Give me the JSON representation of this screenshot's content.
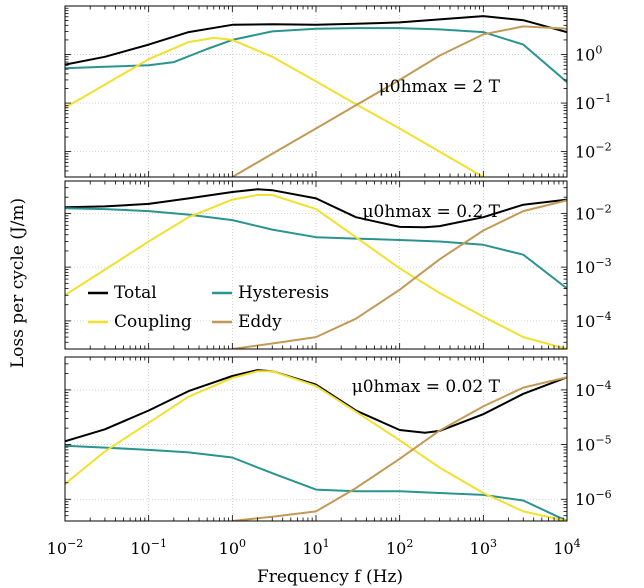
{
  "figure": {
    "ylabel": "Loss per cycle (J/m)",
    "xlabel": "Frequency f (Hz)"
  },
  "colors": {
    "Total": "#000000",
    "Hysteresis": "#2a9490",
    "Coupling": "#f2e02d",
    "Eddy": "#c29a57"
  },
  "chart_data": [
    {
      "type": "line",
      "annotation": "μ0hmax = 2 T",
      "xlim": [
        0.01,
        10000
      ],
      "xscale": "log",
      "ylim": [
        0.003,
        10
      ],
      "yscale": "log",
      "grid": true,
      "yticks": [
        {
          "v": 1,
          "label": "10^0"
        },
        {
          "v": 0.1,
          "label": "10^-1"
        },
        {
          "v": 0.01,
          "label": "10^-2"
        }
      ],
      "series": [
        {
          "name": "Total",
          "x": [
            0.01,
            0.03,
            0.1,
            0.3,
            1,
            3,
            10,
            30,
            100,
            300,
            1000,
            3000,
            10000
          ],
          "y": [
            0.62,
            0.9,
            1.6,
            2.9,
            4.1,
            4.2,
            4.1,
            4.3,
            4.6,
            5.3,
            6.2,
            5.1,
            2.9
          ]
        },
        {
          "name": "Hysteresis",
          "x": [
            0.01,
            0.03,
            0.1,
            0.2,
            0.5,
            1,
            3,
            10,
            30,
            100,
            300,
            1000,
            3000,
            10000
          ],
          "y": [
            0.52,
            0.56,
            0.6,
            0.7,
            1.3,
            2.0,
            3.0,
            3.4,
            3.5,
            3.5,
            3.3,
            2.9,
            1.6,
            0.27
          ]
        },
        {
          "name": "Coupling",
          "x": [
            0.01,
            0.03,
            0.1,
            0.3,
            0.6,
            1,
            3,
            10,
            30,
            100,
            300,
            1000
          ],
          "y": [
            0.08,
            0.24,
            0.8,
            1.8,
            2.2,
            2.0,
            0.9,
            0.28,
            0.095,
            0.03,
            0.01,
            0.003
          ]
        },
        {
          "name": "Eddy",
          "x": [
            1,
            3,
            10,
            30,
            100,
            300,
            1000,
            3000,
            10000
          ],
          "y": [
            0.003,
            0.009,
            0.03,
            0.09,
            0.3,
            0.95,
            2.6,
            3.8,
            3.4
          ]
        }
      ]
    },
    {
      "type": "line",
      "annotation": "μ0hmax = 0.2 T",
      "xlim": [
        0.01,
        10000
      ],
      "xscale": "log",
      "ylim": [
        3e-05,
        0.04
      ],
      "yscale": "log",
      "grid": true,
      "yticks": [
        {
          "v": 0.01,
          "label": "10^-2"
        },
        {
          "v": 0.001,
          "label": "10^-3"
        },
        {
          "v": 0.0001,
          "label": "10^-4"
        }
      ],
      "series": [
        {
          "name": "Total",
          "x": [
            0.01,
            0.03,
            0.1,
            0.3,
            1,
            2,
            3,
            10,
            30,
            100,
            200,
            300,
            1000,
            3000,
            10000
          ],
          "y": [
            0.013,
            0.0135,
            0.015,
            0.019,
            0.025,
            0.028,
            0.027,
            0.019,
            0.0085,
            0.0056,
            0.0055,
            0.0058,
            0.0085,
            0.0145,
            0.018
          ]
        },
        {
          "name": "Hysteresis",
          "x": [
            0.01,
            0.03,
            0.1,
            0.3,
            1,
            3,
            10,
            30,
            100,
            300,
            1000,
            3000,
            10000
          ],
          "y": [
            0.0125,
            0.012,
            0.011,
            0.0095,
            0.0075,
            0.005,
            0.0036,
            0.0034,
            0.0032,
            0.003,
            0.0026,
            0.0017,
            0.0004
          ]
        },
        {
          "name": "Coupling",
          "x": [
            0.01,
            0.03,
            0.1,
            0.3,
            1,
            2,
            3,
            10,
            30,
            100,
            300,
            1000,
            3000,
            10000
          ],
          "y": [
            0.0003,
            0.0009,
            0.003,
            0.0085,
            0.018,
            0.022,
            0.022,
            0.012,
            0.0036,
            0.00095,
            0.00033,
            0.00012,
            5e-05,
            3e-05
          ]
        },
        {
          "name": "Eddy",
          "x": [
            1,
            3,
            10,
            30,
            100,
            300,
            1000,
            3000,
            10000
          ],
          "y": [
            3e-05,
            3.8e-05,
            5e-05,
            0.00011,
            0.00038,
            0.0014,
            0.0048,
            0.011,
            0.0175
          ]
        }
      ]
    },
    {
      "type": "line",
      "annotation": "μ0hmax = 0.02 T",
      "xlim": [
        0.01,
        10000
      ],
      "xscale": "log",
      "ylim": [
        4e-07,
        0.0004
      ],
      "yscale": "log",
      "grid": true,
      "yticks": [
        {
          "v": 0.0001,
          "label": "10^-4"
        },
        {
          "v": 1e-05,
          "label": "10^-5"
        },
        {
          "v": 1e-06,
          "label": "10^-6"
        }
      ],
      "series": [
        {
          "name": "Total",
          "x": [
            0.01,
            0.03,
            0.1,
            0.3,
            1,
            2,
            3,
            10,
            30,
            100,
            200,
            300,
            1000,
            3000,
            10000
          ],
          "y": [
            1.15e-05,
            1.9e-05,
            4.2e-05,
            9.5e-05,
            0.00018,
            0.00023,
            0.00022,
            0.000125,
            4.2e-05,
            1.85e-05,
            1.65e-05,
            1.78e-05,
            3.6e-05,
            8.5e-05,
            0.00017
          ]
        },
        {
          "name": "Hysteresis",
          "x": [
            0.01,
            0.03,
            0.1,
            0.3,
            1,
            3,
            10,
            30,
            100,
            300,
            1000,
            3000,
            10000
          ],
          "y": [
            9.5e-06,
            8.8e-06,
            8e-06,
            7.2e-06,
            5.8e-06,
            3e-06,
            1.5e-06,
            1.4e-06,
            1.4e-06,
            1.3e-06,
            1.2e-06,
            9.5e-07,
            4e-07
          ]
        },
        {
          "name": "Coupling",
          "x": [
            0.01,
            0.03,
            0.1,
            0.3,
            1,
            2,
            3,
            10,
            30,
            100,
            300,
            1000,
            3000,
            10000
          ],
          "y": [
            1.9e-06,
            7.5e-06,
            2.5e-05,
            7.5e-05,
            0.000165,
            0.00022,
            0.00022,
            0.000118,
            4e-05,
            1.2e-05,
            3.8e-06,
            1.3e-06,
            6e-07,
            4e-07
          ]
        },
        {
          "name": "Eddy",
          "x": [
            1,
            3,
            10,
            30,
            100,
            300,
            1000,
            3000,
            10000
          ],
          "y": [
            4e-07,
            4.8e-07,
            6e-07,
            1.6e-06,
            5.5e-06,
            1.8e-05,
            5e-05,
            0.00011,
            0.00017
          ]
        }
      ]
    }
  ],
  "legend": {
    "placement": "inside panel 2, lower-left",
    "entries": [
      "Total",
      "Hysteresis",
      "Coupling",
      "Eddy"
    ]
  }
}
